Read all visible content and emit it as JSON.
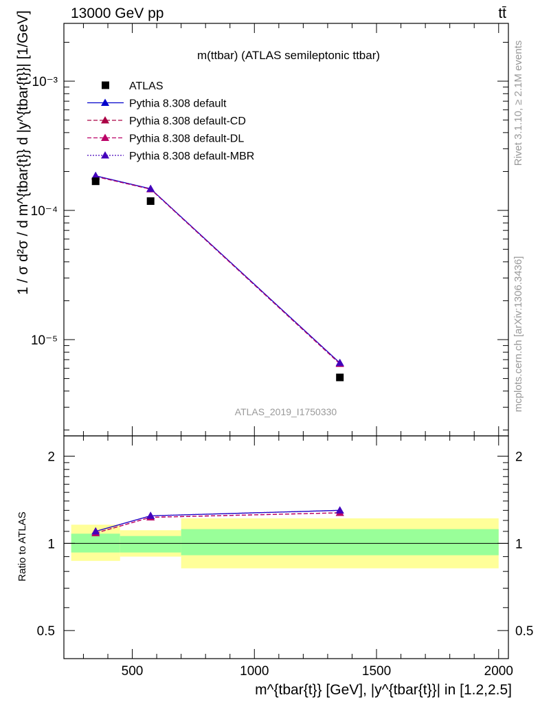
{
  "header": {
    "energy": "13000 GeV pp",
    "process": "tt̄"
  },
  "side_labels": {
    "rivet": "Rivet 3.1.10, ≥ 2.1M events",
    "mcplots": "mcplots.cern.ch [arXiv:1306.3436]"
  },
  "main_panel": {
    "title": "m(ttbar) (ATLAS semileptonic ttbar)",
    "watermark": "ATLAS_2019_I1750330",
    "ylabel": "1 / σ d²σ / d m^{tbar{t}} d |y^{tbar{t}}| [1/GeV]",
    "ytick_labels": [
      "10⁻³",
      "10⁻⁴",
      "10⁻⁵"
    ]
  },
  "ratio_panel": {
    "ylabel": "Ratio to ATLAS",
    "ytick_labels": [
      "0.5",
      "1",
      "2"
    ]
  },
  "xaxis": {
    "label": "m^{tbar{t}} [GeV], |y^{tbar{t}}| in [1.2,2.5]",
    "tick_labels": [
      "500",
      "1000",
      "1500",
      "2000"
    ]
  },
  "legend": [
    {
      "label": "ATLAS"
    },
    {
      "label": "Pythia 8.308 default"
    },
    {
      "label": "Pythia 8.308 default-CD"
    },
    {
      "label": "Pythia 8.308 default-DL"
    },
    {
      "label": "Pythia 8.308 default-MBR"
    }
  ],
  "colors": {
    "data": "#000000",
    "default": "#0000cc",
    "cd": "#aa0044",
    "dl": "#bb0066",
    "mbr": "#4400bb",
    "band_inner": "#99ff99",
    "band_outer": "#ffff99"
  },
  "chart_data": {
    "type": "scatter",
    "x_scale": "linear",
    "y_scale": "log",
    "xlim": [
      220,
      2040
    ],
    "ylim": [
      1.8e-06,
      0.0028
    ],
    "ratio_ylim": [
      0.4,
      2.35
    ],
    "bins": [
      [
        250,
        450
      ],
      [
        450,
        700
      ],
      [
        700,
        2000
      ]
    ],
    "x": [
      350,
      575,
      1350
    ],
    "data": {
      "name": "ATLAS",
      "values": [
        0.000168,
        0.000118,
        5.1e-06
      ],
      "ratio_band_inner": [
        [
          0.93,
          1.08
        ],
        [
          0.93,
          1.06
        ],
        [
          0.91,
          1.12
        ]
      ],
      "ratio_band_outer": [
        [
          0.87,
          1.16
        ],
        [
          0.9,
          1.11
        ],
        [
          0.82,
          1.22
        ]
      ]
    },
    "series": [
      {
        "name": "Pythia 8.308 default",
        "key": "default",
        "style": "solid",
        "values": [
          0.000185,
          0.000147,
          6.6e-06
        ],
        "ratio": [
          1.1,
          1.245,
          1.3
        ]
      },
      {
        "name": "Pythia 8.308 default-CD",
        "key": "cd",
        "style": "dashed",
        "values": [
          0.000183,
          0.000146,
          6.5e-06
        ],
        "ratio": [
          1.085,
          1.23,
          1.275
        ]
      },
      {
        "name": "Pythia 8.308 default-DL",
        "key": "dl",
        "style": "dashed",
        "values": [
          0.000183,
          0.000146,
          6.5e-06
        ],
        "ratio": [
          1.085,
          1.23,
          1.275
        ]
      },
      {
        "name": "Pythia 8.308 default-MBR",
        "key": "mbr",
        "style": "dotted",
        "values": [
          0.000185,
          0.000147,
          6.6e-06
        ],
        "ratio": [
          1.1,
          1.245,
          1.3
        ]
      }
    ]
  }
}
